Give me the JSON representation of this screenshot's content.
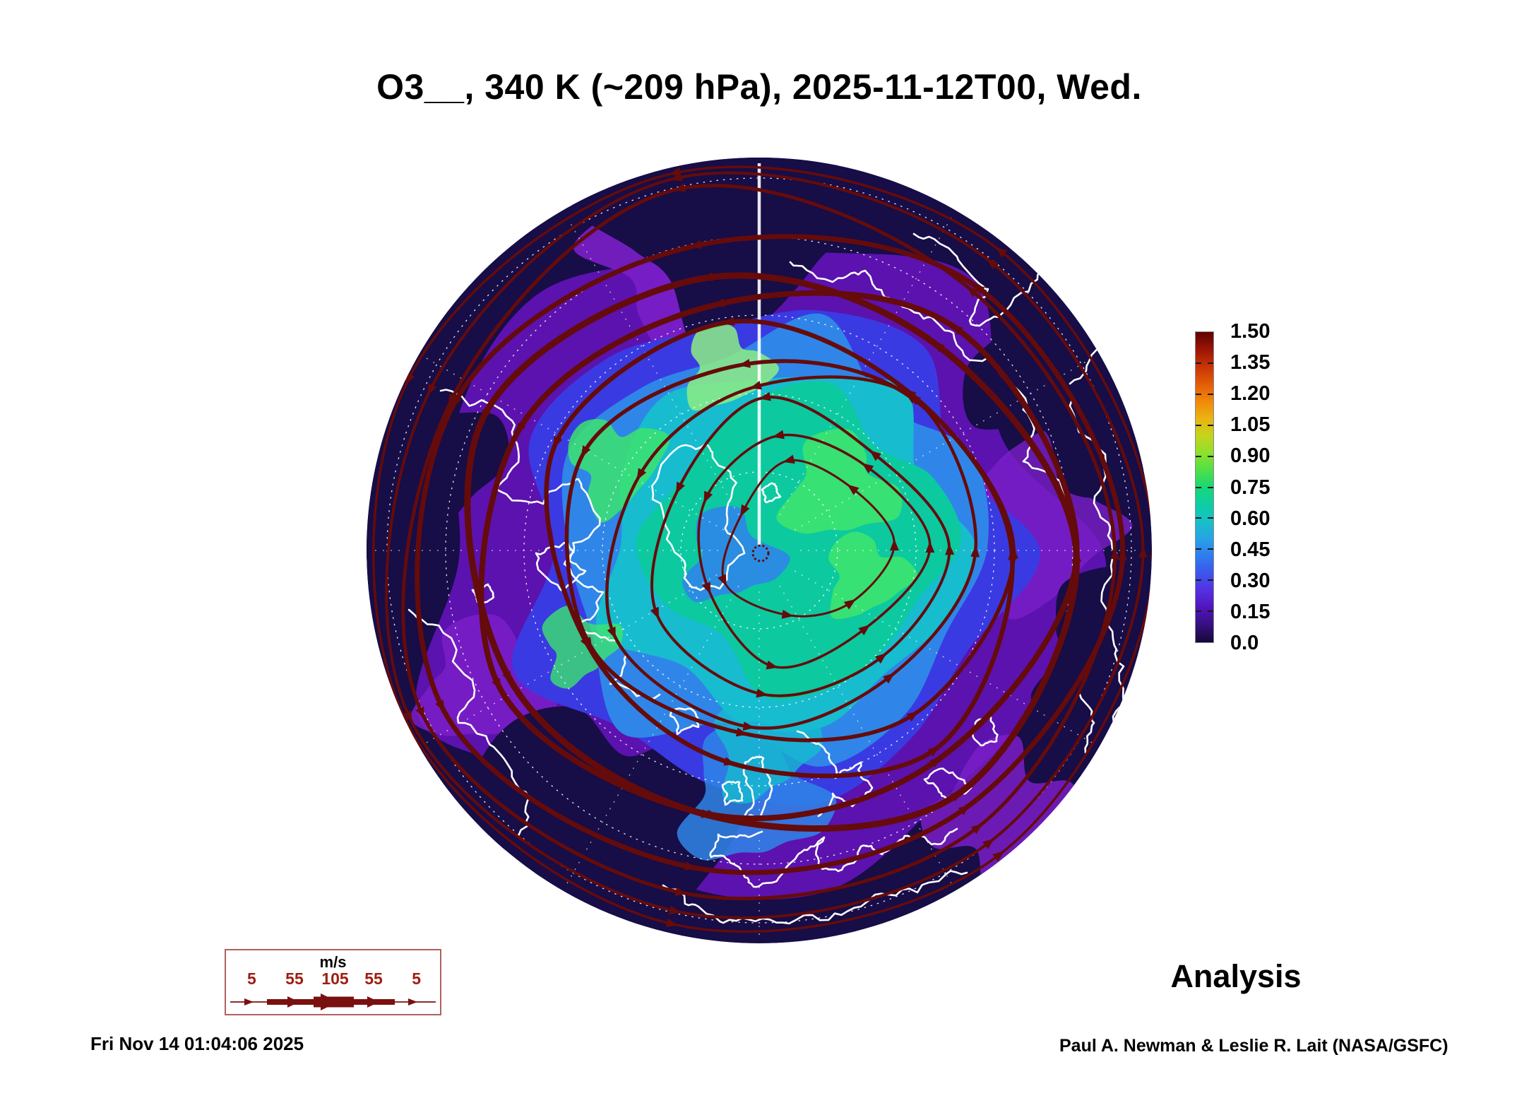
{
  "title": "O3__, 340 K (~209 hPa), 2025-11-12T00, Wed.",
  "footer": {
    "generated_timestamp": "Fri Nov 14 01:04:06 2025",
    "credit": "Paul A. Newman & Leslie R. Lait (NASA/GSFC)",
    "mode_label": "Analysis"
  },
  "wind_legend": {
    "units_label": "m/s",
    "tick_labels": [
      "5",
      "55",
      "105",
      "55",
      "5"
    ]
  },
  "chart_data": {
    "type": "heatmap",
    "title": "O3__, 340 K (~209 hPa), 2025-11-12T00, Wed.",
    "variable": "O3__",
    "level": "340 K (~209 hPa)",
    "valid_time": "2025-11-12T00, Wed.",
    "mode": "Analysis",
    "projection": "Northern Hemisphere polar view",
    "colorbar": {
      "min": 0.0,
      "max": 1.5,
      "tick_values": [
        1.5,
        1.35,
        1.2,
        1.05,
        0.9,
        0.75,
        0.6,
        0.45,
        0.3,
        0.15,
        0.0
      ],
      "tick_labels": [
        "1.50",
        "1.35",
        "1.20",
        "1.05",
        "0.90",
        "0.75",
        "0.60",
        "0.45",
        "0.30",
        "0.15",
        "0.0"
      ],
      "colors_bottom_to_top": [
        "#160839",
        "#35107e",
        "#5114bc",
        "#5530e2",
        "#3c55ec",
        "#2f7cee",
        "#27a2e6",
        "#17c0c8",
        "#0ecda4",
        "#17d877",
        "#50e046",
        "#8fe02c",
        "#c4d41c",
        "#ecb212",
        "#f1870a",
        "#e35b07",
        "#c83406",
        "#9c1405",
        "#5e0202"
      ]
    },
    "wind_scale": {
      "units": "m/s",
      "values": [
        5,
        55,
        105,
        55,
        5
      ]
    },
    "overlays": [
      "ozone field (filled colors)",
      "wind streamlines with arrows",
      "coastlines",
      "latitude-longitude graticule"
    ]
  },
  "theme": {
    "background": "#ffffff",
    "text": "#000000",
    "navy": "#170d47",
    "purple": "#5c12ae",
    "violet": "#7a1fc8",
    "blue": "#3a3ae2",
    "light_blue": "#2f86e8",
    "cyan": "#17bccf",
    "teal": "#0cc9a0",
    "green": "#3ce36e",
    "pale_green": "#8ded84",
    "streamline": "#650b0b",
    "coastline": "#ffffff",
    "graticule": "#ffffff",
    "legend_accent": "#9e1d12",
    "legend_arrow": "#7a1010",
    "legend_border": "#b06060"
  }
}
